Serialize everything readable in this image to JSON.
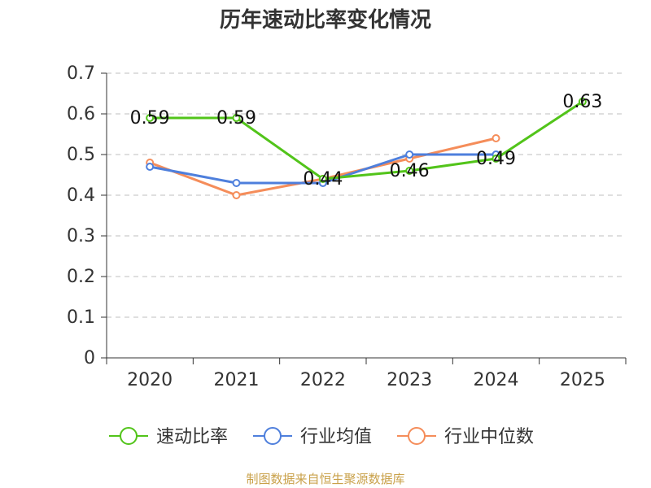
{
  "chart_data": {
    "type": "line",
    "title": "历年速动比率变化情况",
    "categories": [
      "2020",
      "2021",
      "2022",
      "2023",
      "2024",
      "2025"
    ],
    "ylim": [
      0,
      0.7
    ],
    "yticks": [
      "0",
      "0.1",
      "0.2",
      "0.3",
      "0.4",
      "0.5",
      "0.6",
      "0.7"
    ],
    "grid": true,
    "legend_position": "bottom",
    "series": [
      {
        "name": "速动比率",
        "color": "#52c41a",
        "values": [
          0.59,
          0.59,
          0.44,
          0.46,
          0.49,
          0.63
        ],
        "labels": [
          "0.59",
          "0.59",
          "0.44",
          "0.46",
          "0.49",
          "0.63"
        ]
      },
      {
        "name": "行业均值",
        "color": "#4e7fdc",
        "values": [
          0.47,
          0.43,
          0.43,
          0.5,
          0.5,
          null
        ]
      },
      {
        "name": "行业中位数",
        "color": "#f58d5a",
        "values": [
          0.48,
          0.4,
          0.44,
          0.49,
          0.54,
          null
        ]
      }
    ]
  },
  "footer": {
    "source": "制图数据来自恒生聚源数据库"
  }
}
